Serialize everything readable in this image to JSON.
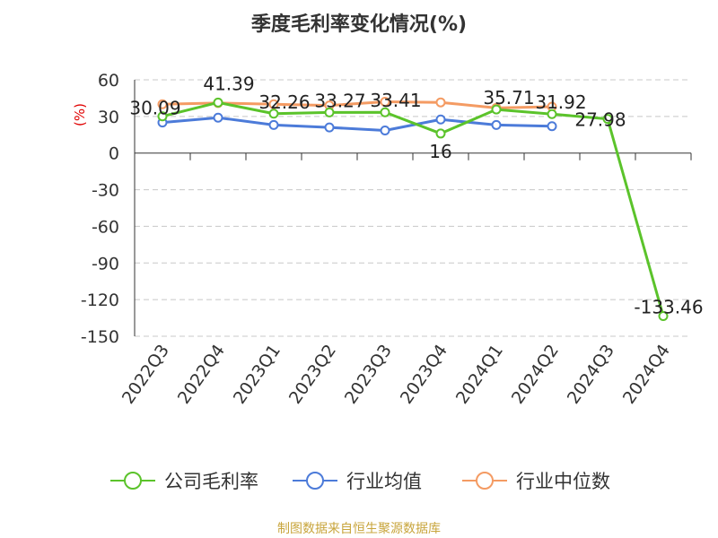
{
  "chart_data": {
    "type": "line",
    "title": "季度毛利率变化情况(%)",
    "ylabel": "(%)",
    "ylim": [
      -150,
      60
    ],
    "yticks": [
      60,
      30,
      0,
      -30,
      -60,
      -90,
      -120,
      -150
    ],
    "grid": true,
    "legend_position": "bottom",
    "categories": [
      "2022Q3",
      "2022Q4",
      "2023Q1",
      "2023Q2",
      "2023Q3",
      "2023Q4",
      "2024Q1",
      "2024Q2",
      "2024Q3",
      "2024Q4"
    ],
    "series": [
      {
        "name": "公司毛利率",
        "color": "#5bc32b",
        "values": [
          30.09,
          41.39,
          32.26,
          33.27,
          33.41,
          16,
          35.71,
          31.92,
          27.98,
          -133.46
        ],
        "labels": [
          "30.09",
          "41.39",
          "32.26",
          "33.27",
          "33.41",
          "16",
          "35.71",
          "31.92",
          "27.98",
          "-133.46"
        ]
      },
      {
        "name": "行业均值",
        "color": "#4c7bd9",
        "values": [
          25,
          29,
          23,
          21,
          18.5,
          27.5,
          23,
          22,
          null,
          null
        ]
      },
      {
        "name": "行业中位数",
        "color": "#f49b63",
        "values": [
          40,
          41,
          40,
          39,
          42,
          41.5,
          37,
          38,
          null,
          null
        ]
      }
    ]
  },
  "source": "制图数据来自恒生聚源数据库"
}
